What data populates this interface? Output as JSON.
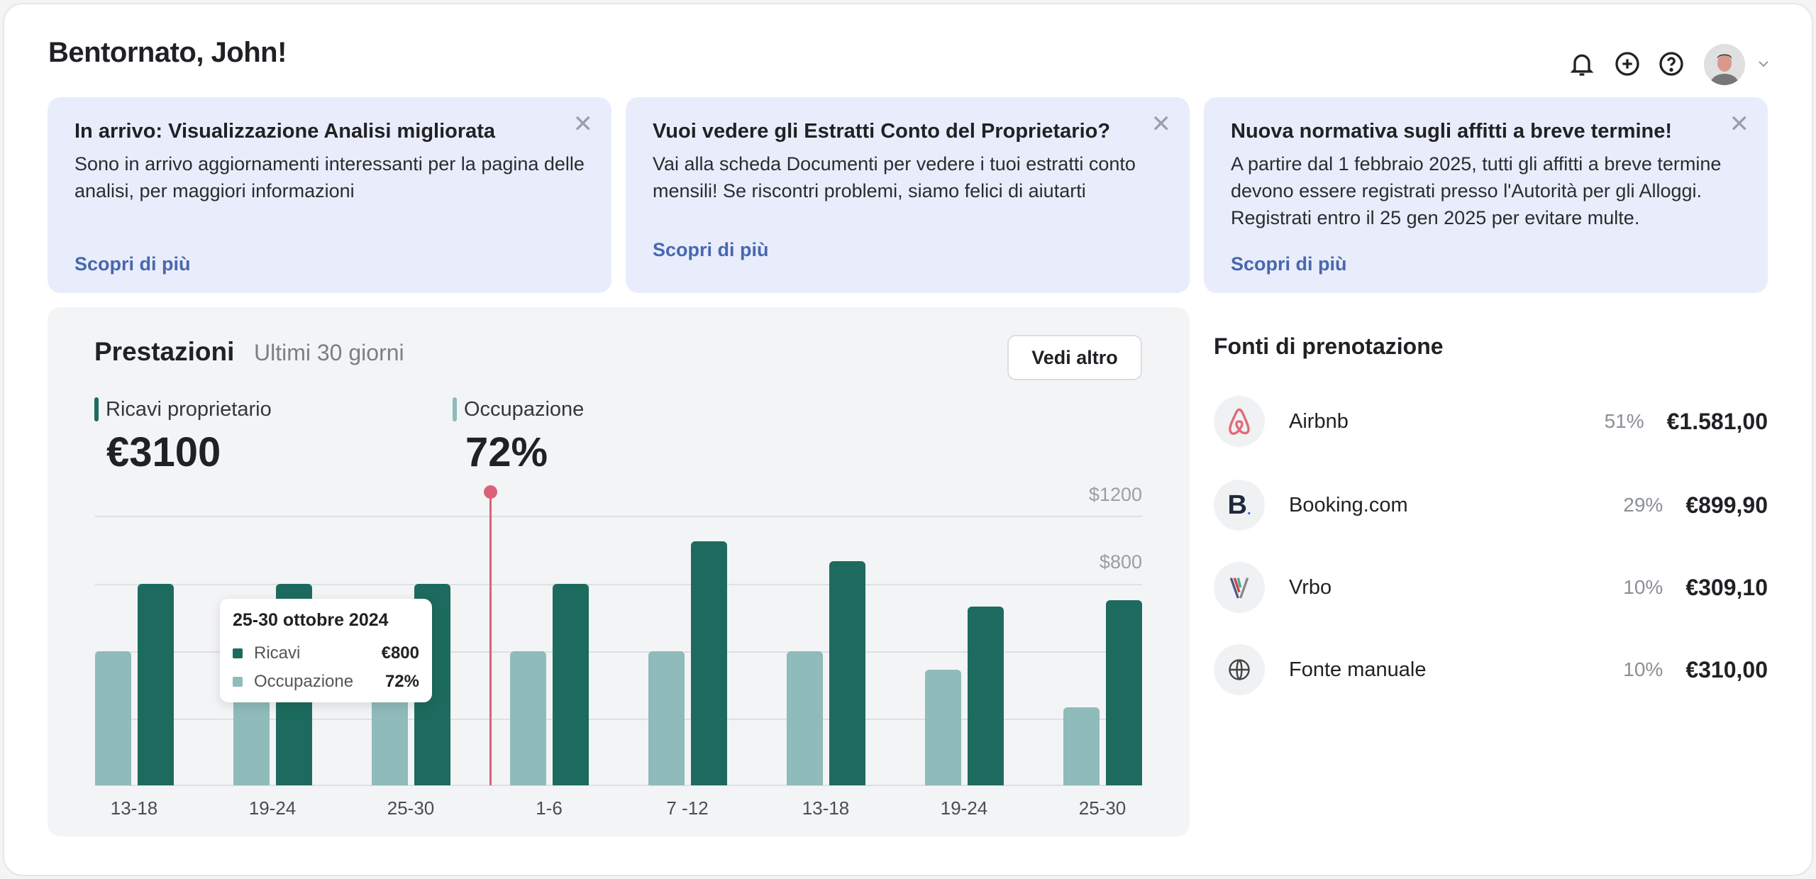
{
  "header": {
    "title": "Bentornato, John!",
    "icons": [
      "bell-icon",
      "plus-circle-icon",
      "help-icon",
      "avatar",
      "chevron-down-icon"
    ]
  },
  "announcements": [
    {
      "title": "In arrivo: Visualizzazione Analisi migliorata",
      "body": "Sono in arrivo aggiornamenti interessanti per la pagina delle analisi, per maggiori informazioni",
      "link": "Scopri di più"
    },
    {
      "title": "Vuoi vedere gli Estratti Conto del Proprietario?",
      "body": "Vai alla scheda Documenti per vedere i tuoi estratti conto mensili! Se riscontri problemi, siamo felici di aiutarti",
      "link": "Scopri di più"
    },
    {
      "title": "Nuova normativa sugli affitti a breve termine!",
      "body": "A partire dal 1 febbraio 2025, tutti gli affitti a breve termine devono essere registrati presso l'Autorità per gli Alloggi. Registrati entro il 25 gen 2025 per evitare multe.",
      "link": "Scopri di più"
    }
  ],
  "performance": {
    "title": "Prestazioni",
    "period": "Ultimi 30 giorni",
    "more_button": "Vedi altro",
    "revenue_label": "Ricavi proprietario",
    "revenue_value": "€3100",
    "occupancy_label": "Occupazione",
    "occupancy_value": "72%",
    "tooltip": {
      "title": "25-30 ottobre 2024",
      "rows": [
        {
          "label": "Ricavi",
          "value": "€800"
        },
        {
          "label": "Occupazione",
          "value": "72%"
        }
      ]
    }
  },
  "chart_data": {
    "type": "bar",
    "categories": [
      "13-18",
      "19-24",
      "25-30",
      "1-6",
      "7 -12",
      "13-18",
      "19-24",
      "25-30"
    ],
    "series": [
      {
        "name": "Occupazione",
        "unit": "%",
        "color": "#8fbbba",
        "values": [
          72,
          72,
          72,
          72,
          72,
          72,
          62,
          42
        ]
      },
      {
        "name": "Ricavi",
        "unit": "$",
        "color": "#1d6b5e",
        "values": [
          800,
          800,
          800,
          800,
          970,
          890,
          710,
          735
        ]
      }
    ],
    "y_tick_labels": [
      "$1200",
      "$800"
    ],
    "grid": true,
    "highlight_index": 2
  },
  "sources": {
    "title": "Fonti di prenotazione",
    "items": [
      {
        "name": "Airbnb",
        "pct": "51%",
        "amount": "€1.581,00",
        "icon": "airbnb-icon"
      },
      {
        "name": "Booking.com",
        "pct": "29%",
        "amount": "€899,90",
        "icon": "booking-icon"
      },
      {
        "name": "Vrbo",
        "pct": "10%",
        "amount": "€309,10",
        "icon": "vrbo-icon"
      },
      {
        "name": "Fonte manuale",
        "pct": "10%",
        "amount": "€310,00",
        "icon": "globe-icon"
      }
    ]
  }
}
